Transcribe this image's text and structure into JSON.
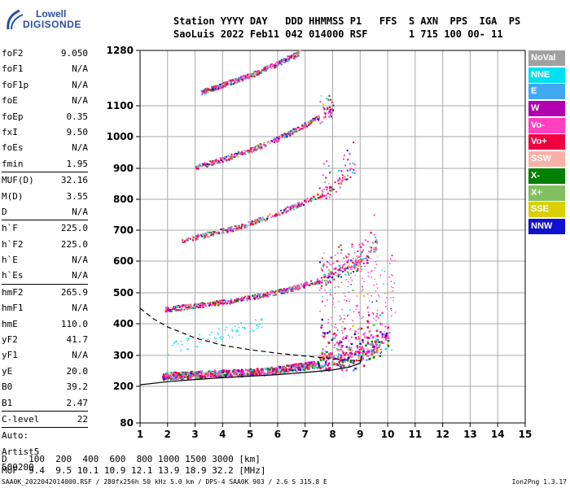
{
  "logo": {
    "line1": "Lowell",
    "line2": "DIGISONDE"
  },
  "header": {
    "line1": "Station YYYY DAY   DDD HHMMSS P1   FFS  S AXN  PPS  IGA  PS",
    "line2": "SaoLuis 2022 Feb11 042 014000 RSF       1 715 100 00- 11"
  },
  "params": [
    {
      "name": "foF2",
      "value": "9.050"
    },
    {
      "name": "foF1",
      "value": "N/A"
    },
    {
      "name": "foF1p",
      "value": "N/A"
    },
    {
      "name": "foE",
      "value": "N/A"
    },
    {
      "name": "foEp",
      "value": "0.35"
    },
    {
      "name": "fxI",
      "value": "9.50"
    },
    {
      "name": "foEs",
      "value": "N/A"
    },
    {
      "name": "fmin",
      "value": "1.95"
    },
    {
      "sep": true
    },
    {
      "name": "MUF(D)",
      "value": "32.16"
    },
    {
      "name": "M(D)",
      "value": "3.55"
    },
    {
      "name": "D",
      "value": "N/A"
    },
    {
      "sep": true
    },
    {
      "name": "h`F",
      "value": "225.0"
    },
    {
      "name": "h`F2",
      "value": "225.0"
    },
    {
      "name": "h`E",
      "value": "N/A"
    },
    {
      "name": "h`Es",
      "value": "N/A"
    },
    {
      "sep": true
    },
    {
      "name": "hmF2",
      "value": "265.9"
    },
    {
      "name": "hmF1",
      "value": "N/A"
    },
    {
      "name": "hmE",
      "value": "110.0"
    },
    {
      "name": "yF2",
      "value": "41.7"
    },
    {
      "name": "yF1",
      "value": "N/A"
    },
    {
      "name": "yE",
      "value": "20.0"
    },
    {
      "name": "B0",
      "value": "39.2"
    },
    {
      "name": "B1",
      "value": "2.47"
    },
    {
      "sep": true
    },
    {
      "name": "C-level",
      "value": "22"
    },
    {
      "sep": true
    },
    {
      "name": "Auto:",
      "value": ""
    },
    {
      "name": "Artist5",
      "value": ""
    },
    {
      "name": "500200",
      "value": ""
    }
  ],
  "legend": [
    {
      "label": "NoVal",
      "color": "#a0a0a0"
    },
    {
      "label": "NNE",
      "color": "#00e0f0"
    },
    {
      "label": "E",
      "color": "#40a8f0"
    },
    {
      "label": "W",
      "color": "#b000b0"
    },
    {
      "label": "Vo-",
      "color": "#ff40c0"
    },
    {
      "label": "Vo+",
      "color": "#f00040"
    },
    {
      "label": "SSW",
      "color": "#f8b0a8"
    },
    {
      "label": "X-",
      "color": "#008000"
    },
    {
      "label": "X+",
      "color": "#80c060"
    },
    {
      "label": "SSE",
      "color": "#d8d000"
    },
    {
      "label": "NNW",
      "color": "#1010d0"
    }
  ],
  "bottom": {
    "line1": "D    100  200  400  600  800 1000 1500 3000 [km]",
    "line2": "MUF  9.4  9.5 10.1 10.9 12.1 13.9 18.9 32.2 [MHz]"
  },
  "footer": {
    "left": "SAA0K_2022042014000.RSF / 280fx256h 50 kHz 5.0 km / DPS-4 SAA0K 903 / 2.6 S 315.8 E",
    "right": "Ion2Png 1.3.17"
  },
  "chart_data": {
    "type": "scatter",
    "xlim": [
      1,
      15
    ],
    "ylim": [
      80,
      1280
    ],
    "x_ticks": [
      1,
      2,
      3,
      4,
      5,
      6,
      7,
      8,
      9,
      10,
      11,
      12,
      13,
      14,
      15
    ],
    "y_ticks": [
      80,
      200,
      300,
      400,
      500,
      600,
      700,
      800,
      900,
      1000,
      1100,
      1280
    ],
    "grid": true,
    "traces": [
      {
        "name": "F-trace",
        "points": [
          [
            1.8,
            235
          ],
          [
            2.5,
            238
          ],
          [
            3.5,
            242
          ],
          [
            4.5,
            245
          ],
          [
            5.5,
            250
          ],
          [
            6.5,
            262
          ],
          [
            7.5,
            275
          ],
          [
            8.5,
            290
          ],
          [
            9.0,
            305
          ],
          [
            9.5,
            330
          ],
          [
            10.0,
            360
          ]
        ]
      },
      {
        "name": "2F-trace",
        "points": [
          [
            1.9,
            447
          ],
          [
            2.5,
            455
          ],
          [
            3.5,
            465
          ],
          [
            4.5,
            478
          ],
          [
            5.5,
            495
          ],
          [
            6.5,
            515
          ],
          [
            7.5,
            540
          ],
          [
            8.5,
            575
          ],
          [
            9.2,
            610
          ],
          [
            9.6,
            655
          ]
        ]
      },
      {
        "name": "3F-trace",
        "points": [
          [
            2.5,
            668
          ],
          [
            3.5,
            690
          ],
          [
            4.5,
            710
          ],
          [
            5.5,
            740
          ],
          [
            6.5,
            775
          ],
          [
            7.5,
            815
          ],
          [
            8.2,
            855
          ],
          [
            8.8,
            910
          ]
        ]
      },
      {
        "name": "4F-trace",
        "points": [
          [
            3.0,
            905
          ],
          [
            4.0,
            930
          ],
          [
            5.0,
            960
          ],
          [
            6.0,
            995
          ],
          [
            7.0,
            1040
          ],
          [
            8.0,
            1090
          ]
        ]
      },
      {
        "name": "5F-trace",
        "points": [
          [
            3.2,
            1145
          ],
          [
            4.0,
            1170
          ],
          [
            5.0,
            1200
          ],
          [
            6.0,
            1240
          ],
          [
            6.8,
            1275
          ]
        ]
      }
    ],
    "model_curves": [
      {
        "name": "solid",
        "style": "solid",
        "points": [
          [
            1,
            205
          ],
          [
            2,
            215
          ],
          [
            3,
            222
          ],
          [
            4,
            228
          ],
          [
            5,
            233
          ],
          [
            6,
            238
          ],
          [
            7,
            245
          ],
          [
            8,
            253
          ],
          [
            8.6,
            262
          ],
          [
            9,
            275
          ],
          [
            9.05,
            300
          ]
        ]
      },
      {
        "name": "dashed",
        "style": "dashed",
        "points": [
          [
            1,
            450
          ],
          [
            1.5,
            415
          ],
          [
            2,
            390
          ],
          [
            3,
            355
          ],
          [
            4,
            332
          ],
          [
            5,
            318
          ],
          [
            6,
            307
          ],
          [
            7,
            298
          ],
          [
            8,
            290
          ],
          [
            8.5,
            285
          ],
          [
            9,
            283
          ]
        ]
      }
    ]
  }
}
